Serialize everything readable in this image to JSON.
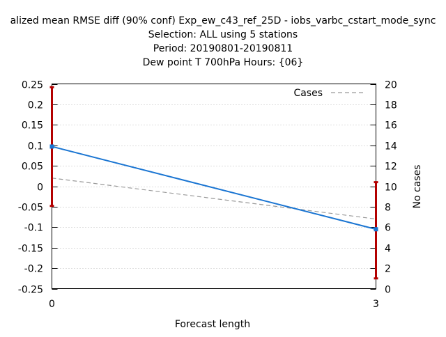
{
  "chart_data": {
    "type": "line",
    "title_lines": [
      "alized mean RMSE diff (90% conf) Exp_ew_c43_ref_25D - iobs_varbc_cstart_mode_sync",
      "Selection: ALL using     5 stations",
      "Period: 20190801-20190811",
      "Dew point T 700hPa   Hours: {06}"
    ],
    "xlabel": "Forecast length",
    "ylabel": "",
    "y2label": "No cases",
    "x_ticks": [
      0,
      3
    ],
    "x_tick_labels": [
      "0",
      "3"
    ],
    "xlim": [
      0,
      3
    ],
    "ylim": [
      -0.25,
      0.25
    ],
    "y_ticks": [
      -0.25,
      -0.2,
      -0.15,
      -0.1,
      -0.05,
      0,
      0.05,
      0.1,
      0.15,
      0.2,
      0.25
    ],
    "y_tick_labels": [
      "-0.25",
      "-0.2",
      "-0.15",
      "-0.1",
      "-0.05",
      "0",
      "0.05",
      "0.1",
      "0.15",
      "0.2",
      "0.25"
    ],
    "y2lim": [
      0,
      20
    ],
    "y2_ticks": [
      0,
      2,
      4,
      6,
      8,
      10,
      12,
      14,
      16,
      18,
      20
    ],
    "y2_tick_labels": [
      "0",
      "2",
      "4",
      "6",
      "8",
      "10",
      "12",
      "14",
      "16",
      "18",
      "20"
    ],
    "grid": true,
    "legend_position": "top-right",
    "series": [
      {
        "name": "",
        "axis": "y",
        "color": "#1a75d2",
        "x": [
          0,
          3
        ],
        "y": [
          0.097,
          -0.105
        ],
        "error_bars": [
          {
            "x": 0,
            "low": -0.048,
            "high": 0.242
          },
          {
            "x": 3,
            "low": -0.225,
            "high": 0.01
          }
        ],
        "error_bar_color": "#b30000"
      },
      {
        "name": "Cases",
        "axis": "y2",
        "color": "#999999",
        "dash": true,
        "x": [
          0,
          3
        ],
        "y": [
          10.8,
          6.8
        ]
      }
    ]
  }
}
